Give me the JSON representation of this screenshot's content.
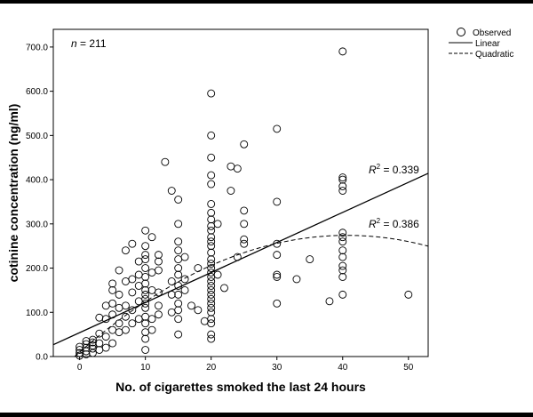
{
  "chart_data": {
    "type": "scatter",
    "title": "",
    "xlabel": "No. of cigarettes smoked the last 24 hours",
    "ylabel": "cotinine concentration (ng/ml)",
    "xlim": [
      -4,
      53
    ],
    "ylim": [
      0,
      740
    ],
    "x_ticks": [
      0,
      10,
      20,
      30,
      40,
      50
    ],
    "y_ticks": [
      0,
      100,
      200,
      300,
      400,
      500,
      600,
      700
    ],
    "y_tick_labels": [
      "0.0",
      "100.0",
      "200.0",
      "300.0",
      "400.0",
      "500.0",
      "600.0",
      "700.0"
    ],
    "grid": false,
    "legend_position": "outside-top-right",
    "legend": {
      "observed": "Observed",
      "linear": "Linear",
      "quadratic": "Quadratic"
    },
    "annotations": {
      "n_prefix": "n",
      "n_value": " = 211",
      "r2_prefix": "R",
      "r2_sup": "2",
      "r2_linear_value": " = 0.339",
      "r2_quadratic_value": " = 0.386"
    },
    "series": [
      {
        "name": "Observed",
        "style": "open-circle",
        "points": [
          [
            0,
            2
          ],
          [
            0,
            8
          ],
          [
            0,
            15
          ],
          [
            0,
            22
          ],
          [
            1,
            5
          ],
          [
            1,
            12
          ],
          [
            1,
            20
          ],
          [
            1,
            28
          ],
          [
            1,
            35
          ],
          [
            2,
            8
          ],
          [
            2,
            18
          ],
          [
            2,
            25
          ],
          [
            2,
            32
          ],
          [
            2,
            38
          ],
          [
            3,
            15
          ],
          [
            3,
            30
          ],
          [
            3,
            52
          ],
          [
            3,
            88
          ],
          [
            4,
            20
          ],
          [
            4,
            45
          ],
          [
            4,
            85
          ],
          [
            4,
            115
          ],
          [
            5,
            30
          ],
          [
            5,
            60
          ],
          [
            5,
            95
          ],
          [
            5,
            120
          ],
          [
            5,
            150
          ],
          [
            5,
            165
          ],
          [
            6,
            55
          ],
          [
            6,
            75
          ],
          [
            6,
            110
          ],
          [
            6,
            140
          ],
          [
            6,
            195
          ],
          [
            7,
            60
          ],
          [
            7,
            90
          ],
          [
            7,
            115
          ],
          [
            7,
            170
          ],
          [
            7,
            240
          ],
          [
            8,
            75
          ],
          [
            8,
            105
          ],
          [
            8,
            145
          ],
          [
            8,
            175
          ],
          [
            8,
            255
          ],
          [
            9,
            85
          ],
          [
            9,
            125
          ],
          [
            9,
            160
          ],
          [
            9,
            185
          ],
          [
            9,
            215
          ],
          [
            10,
            15
          ],
          [
            10,
            40
          ],
          [
            10,
            55
          ],
          [
            10,
            75
          ],
          [
            10,
            90
          ],
          [
            10,
            110
          ],
          [
            10,
            120
          ],
          [
            10,
            130
          ],
          [
            10,
            140
          ],
          [
            10,
            150
          ],
          [
            10,
            165
          ],
          [
            10,
            180
          ],
          [
            10,
            200
          ],
          [
            10,
            220
          ],
          [
            10,
            230
          ],
          [
            10,
            250
          ],
          [
            10,
            285
          ],
          [
            11,
            60
          ],
          [
            11,
            85
          ],
          [
            11,
            150
          ],
          [
            11,
            190
          ],
          [
            11,
            270
          ],
          [
            12,
            95
          ],
          [
            12,
            115
          ],
          [
            12,
            145
          ],
          [
            12,
            195
          ],
          [
            12,
            215
          ],
          [
            12,
            230
          ],
          [
            13,
            440
          ],
          [
            14,
            100
          ],
          [
            14,
            140
          ],
          [
            14,
            170
          ],
          [
            14,
            375
          ],
          [
            15,
            50
          ],
          [
            15,
            85
          ],
          [
            15,
            105
          ],
          [
            15,
            120
          ],
          [
            15,
            140
          ],
          [
            15,
            160
          ],
          [
            15,
            185
          ],
          [
            15,
            200
          ],
          [
            15,
            220
          ],
          [
            15,
            240
          ],
          [
            15,
            260
          ],
          [
            15,
            300
          ],
          [
            15,
            355
          ],
          [
            16,
            150
          ],
          [
            16,
            175
          ],
          [
            16,
            225
          ],
          [
            17,
            115
          ],
          [
            18,
            105
          ],
          [
            18,
            200
          ],
          [
            19,
            80
          ],
          [
            20,
            40
          ],
          [
            20,
            50
          ],
          [
            20,
            75
          ],
          [
            20,
            85
          ],
          [
            20,
            100
          ],
          [
            20,
            110
          ],
          [
            20,
            120
          ],
          [
            20,
            130
          ],
          [
            20,
            140
          ],
          [
            20,
            150
          ],
          [
            20,
            160
          ],
          [
            20,
            170
          ],
          [
            20,
            180
          ],
          [
            20,
            190
          ],
          [
            20,
            200
          ],
          [
            20,
            210
          ],
          [
            20,
            220
          ],
          [
            20,
            235
          ],
          [
            20,
            250
          ],
          [
            20,
            260
          ],
          [
            20,
            270
          ],
          [
            20,
            285
          ],
          [
            20,
            295
          ],
          [
            20,
            310
          ],
          [
            20,
            325
          ],
          [
            20,
            345
          ],
          [
            20,
            390
          ],
          [
            20,
            410
          ],
          [
            20,
            450
          ],
          [
            20,
            500
          ],
          [
            20,
            595
          ],
          [
            21,
            185
          ],
          [
            21,
            300
          ],
          [
            22,
            155
          ],
          [
            23,
            375
          ],
          [
            23,
            430
          ],
          [
            24,
            225
          ],
          [
            24,
            425
          ],
          [
            25,
            255
          ],
          [
            25,
            265
          ],
          [
            25,
            300
          ],
          [
            25,
            330
          ],
          [
            25,
            480
          ],
          [
            30,
            120
          ],
          [
            30,
            180
          ],
          [
            30,
            185
          ],
          [
            30,
            230
          ],
          [
            30,
            255
          ],
          [
            30,
            350
          ],
          [
            30,
            515
          ],
          [
            33,
            175
          ],
          [
            35,
            220
          ],
          [
            38,
            125
          ],
          [
            40,
            140
          ],
          [
            40,
            180
          ],
          [
            40,
            195
          ],
          [
            40,
            205
          ],
          [
            40,
            225
          ],
          [
            40,
            240
          ],
          [
            40,
            260
          ],
          [
            40,
            270
          ],
          [
            40,
            280
          ],
          [
            40,
            375
          ],
          [
            40,
            385
          ],
          [
            40,
            400
          ],
          [
            40,
            405
          ],
          [
            40,
            690
          ],
          [
            50,
            140
          ]
        ]
      },
      {
        "name": "Linear",
        "style": "solid",
        "intercept": 54,
        "slope": 6.8
      },
      {
        "name": "Quadratic",
        "style": "dashed",
        "c0": 10,
        "c1": 13,
        "c2": -0.16
      }
    ]
  }
}
